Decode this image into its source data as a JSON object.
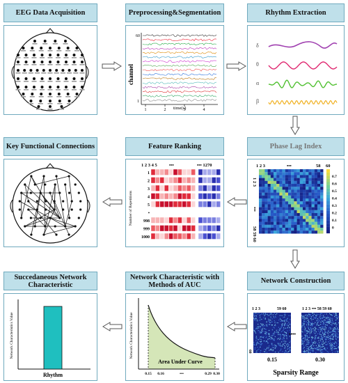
{
  "panels": {
    "eeg": {
      "title": "EEG Data Acquisition"
    },
    "prep": {
      "title": "Preprocessing&Segmentation",
      "ylabel": "channel",
      "xlabel": "time(s)",
      "ch_top": "60",
      "ch_bottom": "1",
      "xticks": [
        "1",
        "2",
        "3",
        "4"
      ]
    },
    "rhythm": {
      "title": "Rhythm Extraction",
      "bands": [
        "δ",
        "θ",
        "α",
        "β"
      ]
    },
    "pli": {
      "title": "Phase Lag Index",
      "top_labels": [
        "1 2 3",
        "•••",
        "58",
        "60"
      ],
      "left_labels": [
        "1 2 3",
        "•••",
        "58 59 60"
      ],
      "colorbar": [
        "0.7",
        "0.6",
        "0.5",
        "0.4",
        "0.3",
        "0.2",
        "0.1",
        "0"
      ]
    },
    "feature": {
      "title": "Feature Ranking",
      "top_left": "1 2 3 4 5",
      "top_dots": "•••",
      "top_right": "••• 1270",
      "ylabel": "Number of Repetitions",
      "rows": [
        "1",
        "2",
        "3",
        "4",
        "5",
        "•",
        "998",
        "999",
        "1000"
      ]
    },
    "keyconn": {
      "title": "Key Functional Connections"
    },
    "netcon": {
      "title": "Network Construction",
      "m1_top": "1 2 3",
      "m1_top_right": "59 60",
      "m2_top": "1 2 3",
      "m2_top_right": "•••  58 59 60",
      "m1_label": "0.15",
      "m2_label": "0.30",
      "dots": "••••",
      "left_bottom": "60",
      "range_label": "Sparsity Range"
    },
    "auc": {
      "title": "Network Characteristic with Methods of AUC",
      "ylabel": "Network Characteristics Value",
      "area_label": "Area Under Curve",
      "xticks": [
        "0.15",
        "0.16",
        "•••",
        "0.29",
        "0.30"
      ]
    },
    "succ": {
      "title": "Succedaneous Network Characteristic",
      "ylabel": "Network Characteristics Value",
      "xlabel": "Rhythm"
    }
  },
  "colors": {
    "header_bg": "#bfe0ea",
    "border": "#6fa9bd",
    "bar": "#1fbfbf",
    "auc_fill": "#d5e6b8"
  }
}
